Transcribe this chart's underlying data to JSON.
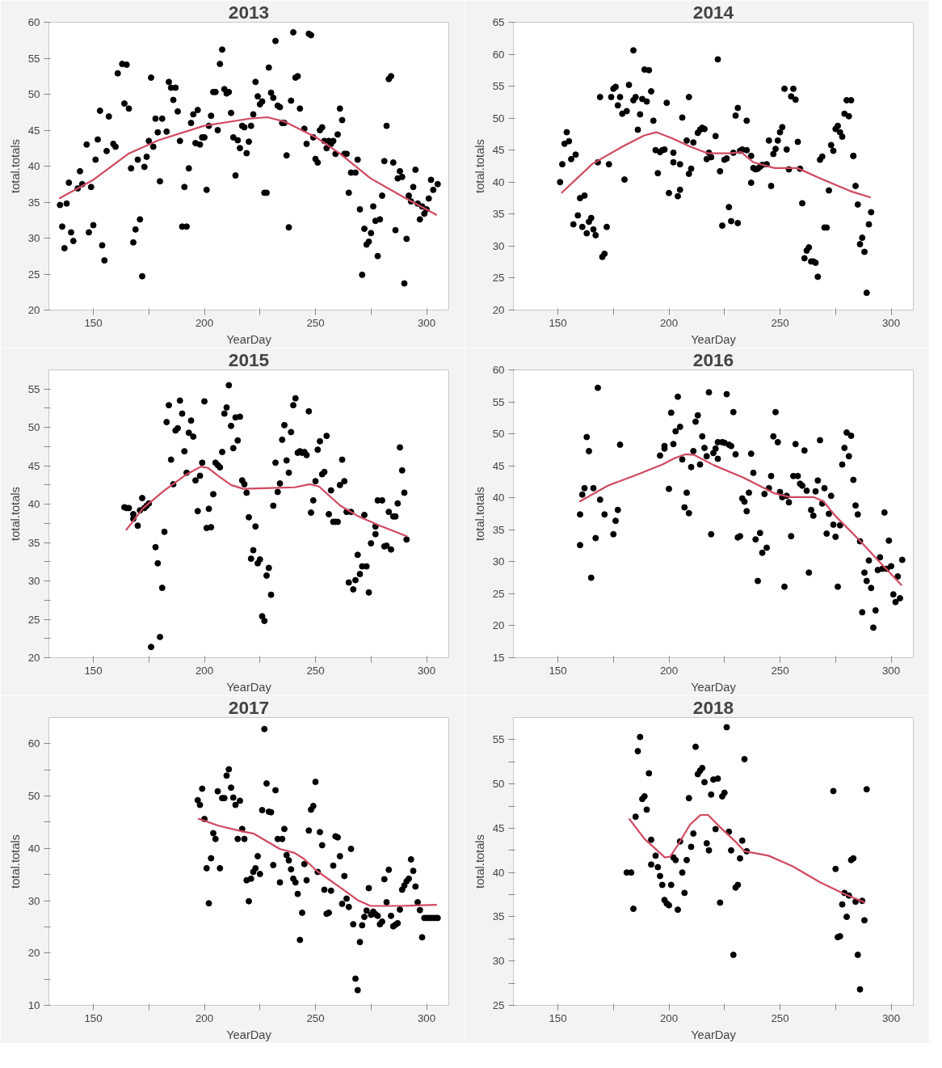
{
  "chart_data": [
    {
      "type": "scatter",
      "title": "2013",
      "xlabel": "YearDay",
      "ylabel": "total.totals",
      "marker": "circle",
      "grid": false,
      "xlim": [
        130,
        310
      ],
      "xticks": [
        150,
        {
          "value": 175,
          "label": null
        },
        200,
        {
          "value": 225,
          "label": null
        },
        250,
        {
          "value": 275,
          "label": null
        },
        300
      ],
      "ylim": [
        20,
        60
      ],
      "yticks": [
        20,
        25,
        30,
        35,
        40,
        45,
        50,
        55,
        60
      ],
      "series": [
        {
          "color": "#000000",
          "x": [
            135,
            136,
            137,
            138,
            139,
            140,
            141,
            143,
            144,
            145,
            147,
            148,
            149,
            150,
            151,
            152,
            153,
            154,
            155,
            156,
            157,
            159,
            160,
            161,
            163,
            165,
            164,
            166,
            167,
            168,
            169,
            170,
            171,
            172,
            173,
            174,
            175,
            176,
            177,
            178,
            180,
            179,
            181,
            183,
            184,
            185,
            186,
            187,
            188,
            189,
            190,
            192,
            191,
            193,
            194,
            195,
            196,
            197,
            198,
            199,
            200,
            201,
            202,
            203,
            204,
            205,
            206,
            207,
            208,
            209,
            210,
            211,
            212,
            213,
            214,
            215,
            216,
            217,
            218,
            219,
            220,
            221,
            222,
            223,
            224,
            225,
            226,
            227,
            228,
            229,
            230,
            231,
            232,
            233,
            234,
            235,
            236,
            237,
            238,
            239,
            240,
            241,
            242,
            243,
            245,
            246,
            247,
            248,
            249,
            250,
            251,
            252,
            253,
            254,
            255,
            256,
            257,
            258,
            259,
            260,
            261,
            262,
            263,
            264,
            265,
            266,
            268,
            269,
            270,
            271,
            272,
            273,
            274,
            275,
            276,
            277,
            278,
            279,
            280,
            281,
            282,
            283,
            284,
            285,
            286,
            287,
            288,
            289,
            290,
            291,
            292,
            293,
            294,
            295,
            296,
            297,
            298,
            299,
            300,
            301,
            302,
            303,
            305
          ],
          "values": [
            34.6,
            31.6,
            28.6,
            34.8,
            37.7,
            30.8,
            29.6,
            36.9,
            39.3,
            37.5,
            43.0,
            30.8,
            37.1,
            31.8,
            40.9,
            43.7,
            47.7,
            29.0,
            26.9,
            42.1,
            46.9,
            43.1,
            42.7,
            52.9,
            54.2,
            54.1,
            48.7,
            48.0,
            39.7,
            29.4,
            31.2,
            40.9,
            32.6,
            24.7,
            39.9,
            41.3,
            43.5,
            52.3,
            42.7,
            46.6,
            37.9,
            44.7,
            46.6,
            44.8,
            51.7,
            50.9,
            49.2,
            50.9,
            47.6,
            43.5,
            31.6,
            31.6,
            37.1,
            39.7,
            46.0,
            47.2,
            43.2,
            47.8,
            43.0,
            44.0,
            44.0,
            36.7,
            45.6,
            47.0,
            50.3,
            50.3,
            45.0,
            54.2,
            56.2,
            50.7,
            50.1,
            50.3,
            47.4,
            44.0,
            38.7,
            43.6,
            42.5,
            45.6,
            45.4,
            41.8,
            43.4,
            45.6,
            47.2,
            51.7,
            49.7,
            48.6,
            49.0,
            36.3,
            36.3,
            53.7,
            50.2,
            49.5,
            57.4,
            48.4,
            48.2,
            46.0,
            46.0,
            41.5,
            31.5,
            49.1,
            58.6,
            52.3,
            52.5,
            48.0,
            45.2,
            43.1,
            58.4,
            58.2,
            44.0,
            41.0,
            40.5,
            45.0,
            45.4,
            43.5,
            42.5,
            43.5,
            43.1,
            43.5,
            41.7,
            44.4,
            48.0,
            46.4,
            41.7,
            41.7,
            36.3,
            39.1,
            39.1,
            40.9,
            34.0,
            24.9,
            31.3,
            29.1,
            29.5,
            30.7,
            34.4,
            32.4,
            27.5,
            32.6,
            35.9,
            40.7,
            45.6,
            52.1,
            52.5,
            40.5,
            31.1,
            38.3,
            39.3,
            38.5,
            23.7,
            29.9,
            35.9,
            35.1,
            37.1,
            39.5,
            34.8,
            32.6,
            34.4,
            33.4,
            34.0,
            35.5,
            38.1,
            36.7,
            37.5
          ]
        },
        {
          "type": "line",
          "marker": "none",
          "color": "#d0495f",
          "x": [
            134.6,
            150,
            165.7,
            179.3,
            199.8,
            220.3,
            228.4,
            236,
            250.3,
            261.2,
            274.8,
            288.5,
            304.6
          ],
          "values": [
            35.5,
            38.1,
            41.7,
            43.6,
            45.6,
            46.6,
            46.8,
            46.2,
            44.0,
            41.7,
            38.3,
            35.9,
            33.2
          ]
        }
      ]
    },
    {
      "type": "scatter",
      "title": "2014",
      "xlabel": "YearDay",
      "ylabel": "total.totals",
      "marker": "circle",
      "grid": false,
      "xlim": [
        130,
        310
      ],
      "xticks": [
        150,
        {
          "value": 175,
          "label": null
        },
        200,
        {
          "value": 225,
          "label": null
        },
        250,
        {
          "value": 275,
          "label": null
        },
        300
      ],
      "ylim": [
        20,
        65
      ],
      "yticks": [
        20,
        25,
        30,
        35,
        40,
        45,
        50,
        55,
        60,
        65
      ],
      "series": [
        {
          "color": "#000000",
          "x": [
            151,
            152,
            153,
            154,
            155,
            156,
            158,
            159,
            160,
            162,
            157,
            161,
            163,
            165,
            164,
            166,
            167,
            168,
            169,
            170,
            171,
            172,
            173,
            174,
            175,
            176,
            177,
            178,
            179,
            180,
            181,
            182,
            184,
            184,
            185,
            186,
            187,
            188,
            189,
            190,
            191,
            192,
            193,
            194,
            195,
            196,
            197,
            198,
            199,
            200,
            202,
            202,
            204,
            205,
            205,
            206,
            208,
            209,
            209,
            210,
            211,
            213,
            214,
            215,
            216,
            217,
            218,
            219,
            221,
            222,
            223,
            224,
            225,
            226,
            227,
            228,
            229,
            230,
            231,
            231,
            232,
            233,
            235,
            235,
            237,
            237,
            238,
            239,
            240,
            241,
            242,
            244,
            245,
            246,
            247,
            248,
            249,
            250,
            251,
            252,
            253,
            254,
            255,
            256,
            257,
            258,
            259,
            260,
            261,
            262,
            263,
            264,
            265,
            266,
            267,
            268,
            269,
            270,
            271,
            272,
            273,
            274,
            275,
            276,
            277,
            278,
            279,
            280,
            281,
            282,
            283,
            283,
            284,
            285,
            286,
            287,
            288,
            289,
            290,
            291
          ],
          "values": [
            40.0,
            42.8,
            46.0,
            47.8,
            46.4,
            43.6,
            44.3,
            34.8,
            37.5,
            37.9,
            33.4,
            33.0,
            32.0,
            34.4,
            33.8,
            32.6,
            31.7,
            43.1,
            53.3,
            28.3,
            28.8,
            33.0,
            42.8,
            53.3,
            54.6,
            54.9,
            52.0,
            53.3,
            50.7,
            40.4,
            51.1,
            55.2,
            60.6,
            52.8,
            53.3,
            48.2,
            50.6,
            53.0,
            57.6,
            52.6,
            57.5,
            54.2,
            49.6,
            45.0,
            41.4,
            44.7,
            45.0,
            45.1,
            52.4,
            38.3,
            44.6,
            43.1,
            37.8,
            42.8,
            38.8,
            50.1,
            46.5,
            41.3,
            53.3,
            42.1,
            46.2,
            47.7,
            48.2,
            48.5,
            48.3,
            43.6,
            44.6,
            43.9,
            47.2,
            59.2,
            41.7,
            33.2,
            43.5,
            43.7,
            36.1,
            33.9,
            44.6,
            50.4,
            51.6,
            33.6,
            44.9,
            45.1,
            45.0,
            49.6,
            44.1,
            39.9,
            42.2,
            42.0,
            42.1,
            42.4,
            42.7,
            42.8,
            46.5,
            39.4,
            44.4,
            45.2,
            46.5,
            47.8,
            48.6,
            54.6,
            45.1,
            42.0,
            53.4,
            54.6,
            52.9,
            46.3,
            42.1,
            36.7,
            28.1,
            29.3,
            29.8,
            27.6,
            27.6,
            27.4,
            25.2,
            43.5,
            44.0,
            32.9,
            32.9,
            38.7,
            45.8,
            44.9,
            48.3,
            48.8,
            47.8,
            47.1,
            50.7,
            52.8,
            50.3,
            52.8,
            44.1,
            44.1,
            39.4,
            36.5,
            30.3,
            31.3,
            29.1,
            22.7,
            33.4,
            35.3
          ]
        },
        {
          "type": "line",
          "marker": "none",
          "color": "#d0495f",
          "x": [
            151.6,
            165.7,
            179.3,
            188.9,
            194.3,
            201.2,
            209.3,
            217.5,
            227.1,
            232.5,
            238,
            247.5,
            257.8,
            268,
            281.6,
            290.8
          ],
          "values": [
            38.3,
            42.9,
            45.6,
            47.3,
            47.8,
            46.9,
            45.6,
            44.5,
            44.5,
            44.7,
            43.1,
            42.2,
            42.2,
            40.6,
            38.6,
            37.6
          ]
        }
      ]
    },
    {
      "type": "scatter",
      "title": "2015",
      "xlabel": "YearDay",
      "ylabel": "total.totals",
      "marker": "circle",
      "grid": false,
      "xlim": [
        130,
        310
      ],
      "xticks": [
        150,
        {
          "value": 175,
          "label": null
        },
        200,
        {
          "value": 225,
          "label": null
        },
        250,
        {
          "value": 275,
          "label": null
        },
        300
      ],
      "ylim": [
        20,
        57.5
      ],
      "yticks": [
        20,
        {
          "value": 22.5,
          "label": null
        },
        25,
        {
          "value": 27.5,
          "label": null
        },
        30,
        {
          "value": 32.5,
          "label": null
        },
        35,
        {
          "value": 37.5,
          "label": null
        },
        40,
        {
          "value": 42.5,
          "label": null
        },
        45,
        {
          "value": 47.5,
          "label": null
        },
        50,
        {
          "value": 52.5,
          "label": null
        },
        55
      ],
      "series": [
        {
          "color": "#000000",
          "x": [
            164,
            165,
            166,
            168,
            168,
            170,
            171,
            172,
            173,
            174,
            175,
            176,
            178,
            179,
            180,
            181,
            182,
            183,
            184,
            185,
            186,
            187,
            188,
            189,
            190,
            191,
            192,
            193,
            194,
            195,
            196,
            197,
            198,
            199,
            200,
            201,
            202,
            203,
            204,
            205,
            206,
            207,
            208,
            209,
            210,
            211,
            212,
            213,
            214,
            215,
            216,
            217,
            218,
            219,
            220,
            221,
            222,
            223,
            224,
            225,
            226,
            227,
            228,
            229,
            230,
            231,
            232,
            233,
            234,
            235,
            236,
            237,
            238,
            239,
            240,
            241,
            242,
            243,
            244,
            245,
            246,
            247,
            248,
            249,
            250,
            251,
            252,
            253,
            254,
            255,
            256,
            257,
            258,
            259,
            260,
            261,
            262,
            263,
            264,
            265,
            266,
            267,
            268,
            269,
            270,
            271,
            272,
            273,
            274,
            275,
            277,
            277,
            278,
            280,
            281,
            282,
            283,
            284,
            285,
            286,
            287,
            288,
            289,
            290,
            291
          ],
          "values": [
            39.6,
            39.5,
            39.5,
            38.1,
            38.7,
            37.2,
            39.2,
            40.8,
            39.5,
            39.8,
            40.1,
            21.4,
            34.4,
            32.3,
            22.7,
            29.1,
            36.4,
            50.7,
            52.9,
            45.8,
            42.6,
            49.6,
            49.9,
            53.5,
            51.8,
            46.9,
            44.1,
            49.3,
            50.9,
            48.8,
            43.1,
            39.1,
            43.7,
            45.4,
            53.4,
            36.9,
            39.4,
            37.0,
            41.3,
            45.4,
            45.1,
            44.8,
            46.8,
            51.8,
            52.6,
            55.5,
            50.2,
            47.3,
            51.3,
            48.3,
            51.4,
            43.1,
            42.6,
            41.5,
            38.3,
            32.9,
            34.0,
            37.1,
            32.3,
            32.8,
            25.4,
            24.8,
            30.7,
            31.7,
            28.2,
            39.8,
            45.4,
            41.6,
            42.7,
            48.4,
            50.3,
            45.7,
            44.1,
            49.4,
            52.9,
            53.8,
            46.7,
            46.9,
            46.7,
            46.8,
            46.4,
            52.1,
            38.9,
            40.5,
            43.0,
            47.1,
            48.2,
            43.9,
            44.2,
            48.9,
            38.7,
            41.8,
            37.7,
            37.7,
            37.7,
            42.5,
            45.8,
            43.0,
            39.0,
            29.8,
            39.0,
            28.9,
            30.1,
            33.4,
            30.9,
            31.9,
            38.6,
            31.9,
            28.5,
            34.9,
            36.1,
            37.1,
            40.5,
            40.5,
            34.5,
            34.6,
            39.0,
            34.1,
            38.4,
            38.4,
            40.1,
            47.4,
            44.4,
            41.5,
            35.4
          ]
        },
        {
          "type": "line",
          "marker": "none",
          "color": "#d0495f",
          "x": [
            164.7,
            172.5,
            182,
            191.5,
            198.4,
            201.8,
            206.6,
            212,
            217.5,
            229.8,
            240.7,
            247.5,
            251.6,
            261.2,
            269.4,
            279,
            291.3
          ],
          "values": [
            36.6,
            39.5,
            41.8,
            43.8,
            44.9,
            44.7,
            43.6,
            42.5,
            42.0,
            42.1,
            42.2,
            42.6,
            42.3,
            39.8,
            38.4,
            37.2,
            35.8
          ]
        }
      ]
    },
    {
      "type": "scatter",
      "title": "2016",
      "xlabel": "YearDay",
      "ylabel": "total.totals",
      "marker": "circle",
      "grid": false,
      "xlim": [
        130,
        310
      ],
      "xticks": [
        150,
        {
          "value": 175,
          "label": null
        },
        200,
        {
          "value": 225,
          "label": null
        },
        250,
        {
          "value": 275,
          "label": null
        },
        300
      ],
      "ylim": [
        15,
        60
      ],
      "yticks": [
        15,
        20,
        25,
        30,
        35,
        40,
        45,
        50,
        55,
        60
      ],
      "series": [
        {
          "color": "#000000",
          "x": [
            160,
            160,
            161,
            162,
            163,
            164,
            165,
            166,
            167,
            168,
            169,
            171,
            175,
            176,
            177,
            178,
            196,
            198,
            198,
            200,
            201,
            202,
            203,
            204,
            205,
            206,
            207,
            208,
            209,
            210,
            211,
            212,
            213,
            214,
            215,
            216,
            217,
            218,
            219,
            220,
            221,
            222,
            222,
            224,
            225,
            226,
            227,
            228,
            229,
            230,
            231,
            232,
            233,
            234,
            235,
            236,
            237,
            238,
            239,
            240,
            241,
            242,
            243,
            244,
            245,
            246,
            247,
            248,
            249,
            250,
            251,
            252,
            253,
            254,
            255,
            256,
            257,
            258,
            259,
            260,
            261,
            262,
            263,
            264,
            265,
            266,
            267,
            268,
            269,
            270,
            271,
            272,
            273,
            274,
            275,
            276,
            277,
            278,
            279,
            280,
            281,
            282,
            283,
            284,
            285,
            286,
            287,
            288,
            289,
            290,
            291,
            292,
            293,
            294,
            295,
            296,
            297,
            298,
            299,
            300,
            301,
            302,
            303,
            304,
            305
          ],
          "values": [
            37.4,
            32.6,
            40.5,
            41.5,
            49.5,
            47.3,
            27.5,
            41.5,
            33.7,
            57.2,
            39.7,
            37.4,
            34.3,
            36.4,
            38.1,
            48.3,
            46.6,
            48.1,
            47.7,
            41.4,
            53.3,
            48.4,
            50.4,
            55.8,
            51.1,
            46.0,
            38.5,
            40.8,
            37.6,
            44.8,
            47.3,
            51.9,
            52.9,
            45.2,
            49.6,
            47.8,
            46.5,
            56.5,
            34.3,
            47.0,
            47.7,
            46.1,
            48.7,
            48.7,
            48.6,
            56.2,
            48.3,
            48.1,
            53.4,
            46.8,
            33.8,
            34.0,
            39.9,
            39.4,
            37.9,
            40.8,
            46.9,
            43.9,
            33.5,
            27.0,
            34.5,
            31.4,
            40.6,
            32.2,
            41.5,
            43.4,
            49.6,
            53.4,
            48.7,
            40.9,
            40.1,
            26.1,
            40.3,
            39.3,
            34.0,
            43.4,
            48.4,
            43.4,
            42.2,
            41.9,
            47.4,
            41.1,
            28.3,
            38.1,
            37.2,
            41.0,
            42.7,
            49.0,
            39.1,
            41.5,
            34.4,
            37.5,
            40.3,
            35.8,
            33.9,
            26.1,
            35.7,
            45.2,
            47.8,
            50.2,
            46.5,
            49.7,
            42.8,
            38.8,
            37.4,
            33.2,
            22.1,
            28.3,
            27.0,
            30.2,
            25.9,
            19.7,
            22.4,
            28.7,
            30.7,
            28.9,
            37.7,
            28.9,
            33.3,
            29.3,
            24.9,
            23.7,
            27.7,
            24.3,
            30.3
          ]
        },
        {
          "type": "line",
          "marker": "none",
          "color": "#d0495f",
          "x": [
            159.7,
            172.5,
            186.2,
            197.1,
            202.5,
            207.3,
            211.4,
            220.2,
            233.9,
            247.5,
            254.3,
            265.2,
            269.4,
            274.8,
            285.7,
            295.3,
            304.8
          ],
          "values": [
            39.4,
            41.9,
            43.7,
            45.2,
            46.2,
            46.8,
            46.7,
            45.1,
            43.1,
            40.7,
            40.1,
            40.1,
            39.5,
            37.2,
            33.4,
            29.8,
            26.3
          ]
        }
      ]
    },
    {
      "type": "scatter",
      "title": "2017",
      "xlabel": "YearDay",
      "ylabel": "total.totals",
      "marker": "circle",
      "grid": false,
      "xlim": [
        130,
        310
      ],
      "xticks": [
        150,
        {
          "value": 175,
          "label": null
        },
        200,
        {
          "value": 225,
          "label": null
        },
        250,
        {
          "value": 275,
          "label": null
        },
        300
      ],
      "ylim": [
        10,
        65
      ],
      "yticks": [
        10,
        {
          "value": 15,
          "label": null
        },
        20,
        {
          "value": 25,
          "label": null
        },
        30,
        {
          "value": 35,
          "label": null
        },
        40,
        {
          "value": 45,
          "label": null
        },
        50,
        {
          "value": 55,
          "label": null
        },
        60
      ],
      "series": [
        {
          "color": "#000000",
          "x": [
            197,
            198,
            199,
            200,
            201,
            202,
            203,
            204,
            205,
            206,
            207,
            208,
            209,
            210,
            211,
            212,
            213,
            214,
            215,
            216,
            217,
            218,
            219,
            220,
            221,
            222,
            223,
            224,
            225,
            226,
            227,
            228,
            229,
            230,
            231,
            232,
            233,
            234,
            235,
            236,
            237,
            238,
            239,
            240,
            241,
            242,
            243,
            244,
            245,
            246,
            247,
            248,
            249,
            250,
            251,
            252,
            253,
            254,
            255,
            256,
            257,
            258,
            259,
            260,
            261,
            262,
            263,
            264,
            265,
            266,
            267,
            268,
            269,
            270,
            271,
            272,
            273,
            274,
            275,
            276,
            277,
            278,
            279,
            280,
            281,
            282,
            283,
            284,
            285,
            286,
            287,
            288,
            289,
            290,
            291,
            292,
            293,
            294,
            295,
            296,
            297,
            298,
            299,
            300,
            301,
            302,
            303,
            304,
            305
          ],
          "values": [
            49.2,
            48.3,
            51.4,
            45.6,
            36.2,
            29.5,
            38.1,
            42.9,
            41.8,
            50.9,
            36.2,
            49.6,
            49.6,
            53.9,
            55.1,
            51.6,
            49.7,
            48.3,
            41.8,
            49.1,
            43.7,
            41.8,
            33.9,
            29.9,
            34.2,
            35.5,
            36.2,
            38.5,
            35.1,
            47.3,
            62.8,
            52.4,
            47.0,
            46.9,
            36.8,
            51.1,
            41.8,
            33.5,
            41.8,
            43.7,
            38.7,
            37.7,
            36.0,
            34.2,
            33.5,
            31.3,
            22.5,
            27.7,
            37.0,
            33.9,
            43.4,
            47.4,
            48.1,
            52.7,
            35.5,
            43.1,
            40.6,
            32.1,
            27.5,
            27.7,
            31.9,
            36.7,
            42.3,
            42.1,
            38.5,
            29.4,
            34.7,
            30.4,
            28.8,
            39.9,
            25.5,
            15.1,
            12.9,
            22.1,
            25.3,
            26.9,
            28.1,
            32.4,
            27.3,
            27.9,
            27.4,
            27.1,
            25.5,
            26.0,
            34.1,
            29.7,
            35.9,
            27.1,
            25.1,
            25.4,
            25.7,
            28.3,
            32.1,
            32.9,
            33.7,
            34.2,
            37.9,
            35.7,
            32.7,
            29.7,
            28.2,
            23.0,
            26.7,
            26.7,
            26.7,
            26.7,
            26.7,
            26.7,
            26.7
          ]
        },
        {
          "type": "line",
          "marker": "none",
          "color": "#d0495f",
          "x": [
            197.1,
            206.6,
            217.5,
            222.3,
            227.1,
            233.9,
            240.7,
            244.8,
            250.3,
            261.2,
            269.4,
            274.8,
            288.5,
            304.6
          ],
          "values": [
            45.7,
            44.3,
            43.2,
            42.8,
            41.6,
            39.9,
            39.1,
            38.0,
            35.8,
            32.5,
            30.0,
            29.0,
            29.0,
            29.2
          ]
        }
      ]
    },
    {
      "type": "scatter",
      "title": "2018",
      "xlabel": "YearDay",
      "ylabel": "total.totals",
      "marker": "circle",
      "grid": false,
      "xlim": [
        130,
        310
      ],
      "xticks": [
        150,
        {
          "value": 175,
          "label": null
        },
        200,
        {
          "value": 225,
          "label": null
        },
        250,
        {
          "value": 275,
          "label": null
        },
        300
      ],
      "ylim": [
        25,
        57.5
      ],
      "yticks": [
        25,
        {
          "value": 27.5,
          "label": null
        },
        30,
        {
          "value": 32.5,
          "label": null
        },
        35,
        {
          "value": 37.5,
          "label": null
        },
        40,
        {
          "value": 42.5,
          "label": null
        },
        45,
        {
          "value": 47.5,
          "label": null
        },
        50,
        {
          "value": 52.5,
          "label": null
        },
        55
      ],
      "series": [
        {
          "color": "#000000",
          "x": [
            181,
            183,
            184,
            185,
            186,
            187,
            188,
            189,
            190,
            191,
            192,
            192,
            194,
            195,
            196,
            197,
            198,
            199,
            200,
            201,
            202,
            203,
            204,
            205,
            206,
            207,
            208,
            209,
            210,
            211,
            212,
            213,
            214,
            215,
            216,
            217,
            218,
            219,
            220,
            221,
            222,
            223,
            224,
            225,
            226,
            227,
            228,
            229,
            230,
            231,
            232,
            233,
            234,
            235,
            274,
            275,
            276,
            277,
            278,
            279,
            280,
            281,
            282,
            283,
            284,
            285,
            286,
            287,
            288,
            289
          ],
          "values": [
            40.0,
            40.0,
            35.9,
            46.3,
            53.7,
            55.3,
            48.3,
            48.6,
            47.1,
            51.2,
            40.9,
            43.7,
            41.9,
            40.6,
            39.6,
            38.6,
            36.9,
            36.5,
            36.3,
            38.6,
            41.7,
            41.4,
            35.8,
            43.5,
            40.0,
            37.7,
            41.4,
            48.4,
            42.9,
            44.4,
            54.2,
            51.1,
            51.5,
            51.8,
            50.2,
            43.3,
            42.5,
            48.8,
            50.5,
            44.9,
            50.6,
            36.6,
            48.6,
            49.0,
            56.4,
            44.6,
            42.5,
            30.7,
            38.3,
            38.6,
            41.6,
            43.6,
            52.8,
            42.4,
            49.2,
            40.4,
            32.7,
            32.8,
            36.4,
            37.7,
            35.0,
            37.4,
            41.4,
            41.6,
            36.7,
            30.7,
            26.8,
            36.8,
            34.6,
            49.4
          ]
        },
        {
          "type": "line",
          "marker": "none",
          "color": "#d0495f",
          "x": [
            182,
            189,
            198.2,
            200.6,
            204,
            209.5,
            214.2,
            217.6,
            223.1,
            229.9,
            234,
            244.8,
            255.7,
            268,
            278.8,
            288.3
          ],
          "values": [
            46.1,
            43.8,
            41.7,
            41.8,
            43.1,
            45.4,
            46.5,
            46.5,
            45.1,
            43.5,
            42.4,
            41.9,
            40.7,
            38.9,
            37.6,
            36.6
          ]
        }
      ]
    }
  ]
}
